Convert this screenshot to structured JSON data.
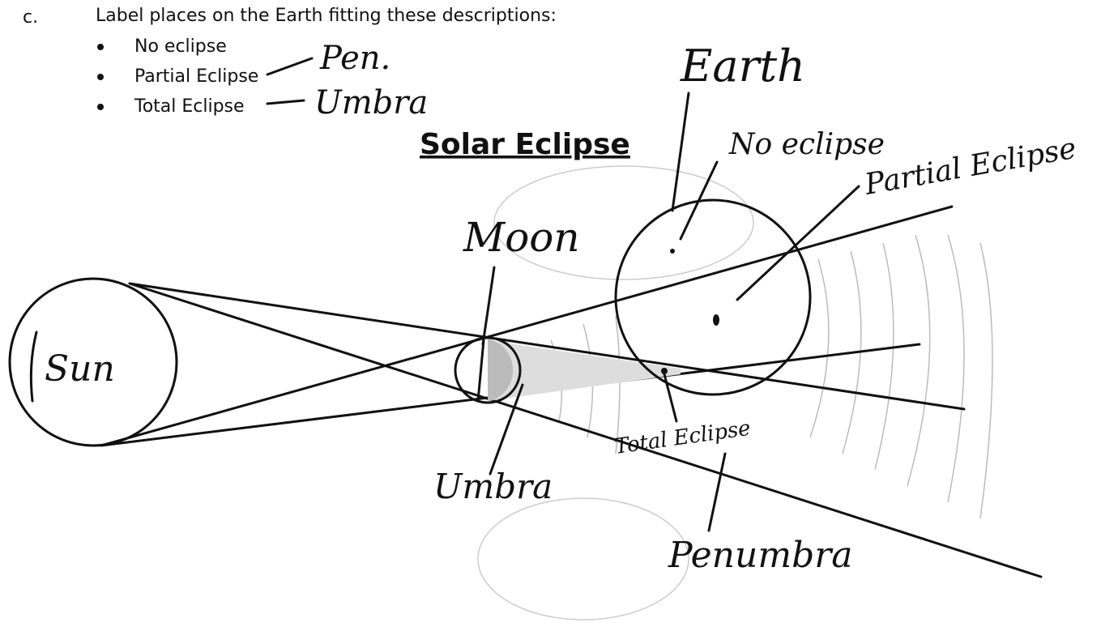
{
  "question": {
    "letter": "c.",
    "prompt": "Label places on the Earth fitting these descriptions:",
    "items": [
      {
        "text": "No eclipse"
      },
      {
        "text": "Partial Eclipse",
        "answer": "Pen."
      },
      {
        "text": "Total Eclipse",
        "answer": "Umbra"
      }
    ]
  },
  "diagram": {
    "title": "Solar Eclipse",
    "labels": {
      "sun": "Sun",
      "moon": "Moon",
      "earth": "Earth",
      "no_eclipse": "No eclipse",
      "partial_eclipse": "Partial Eclipse",
      "umbra": "Umbra",
      "total_eclipse": "Total Eclipse",
      "penumbra": "Penumbra"
    }
  }
}
